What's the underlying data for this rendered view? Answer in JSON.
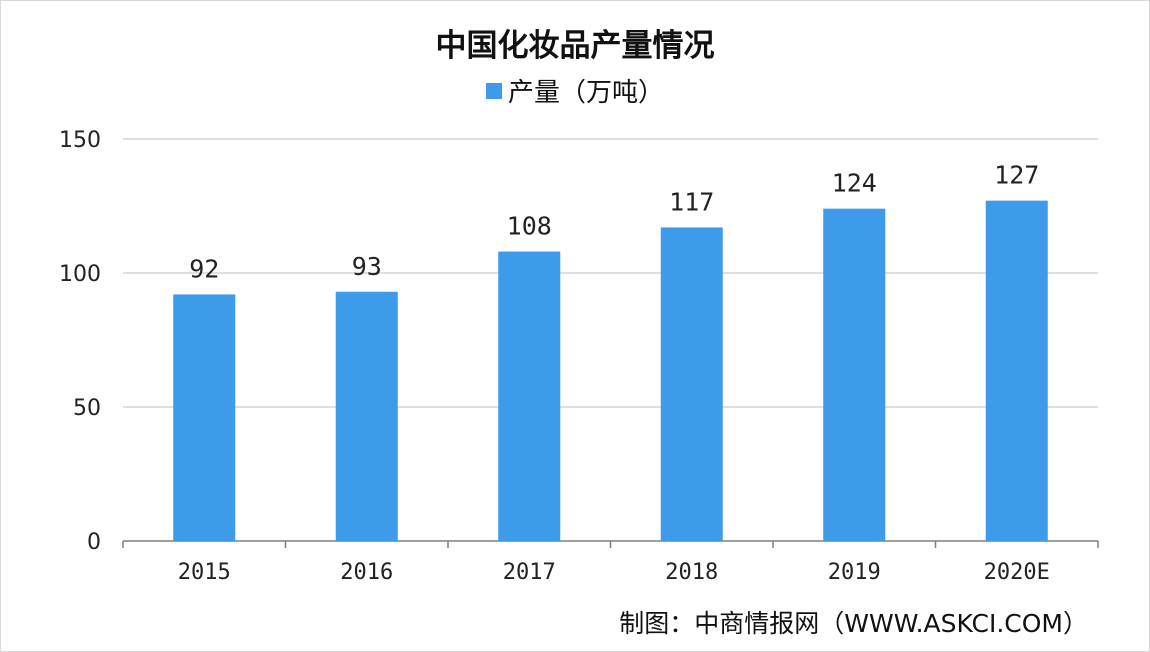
{
  "chart_data": {
    "type": "bar",
    "title": "中国化妆品产量情况",
    "categories": [
      "2015",
      "2016",
      "2017",
      "2018",
      "2019",
      "2020E"
    ],
    "series": [
      {
        "name": "产量（万吨）",
        "values": [
          92,
          93,
          108,
          117,
          124,
          127
        ]
      }
    ],
    "ylim": [
      0,
      150
    ],
    "yticks": [
      0,
      50,
      100,
      150
    ],
    "grid": true,
    "legend_position": "top",
    "bar_color": "#3d9be9"
  },
  "source": "制图：中商情报网（WWW.ASKCI.COM）"
}
